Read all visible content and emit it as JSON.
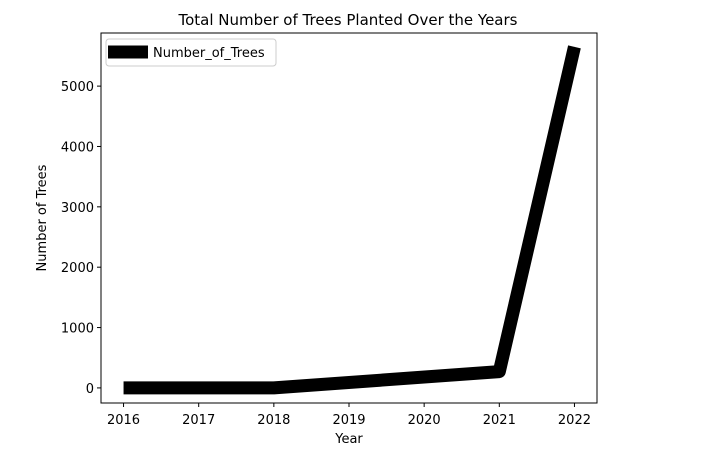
{
  "chart_data": {
    "type": "line",
    "title": "Total Number of Trees Planted Over the Years",
    "xlabel": "Year",
    "ylabel": "Number of Trees",
    "x": [
      2016,
      2018,
      2021,
      2022
    ],
    "series": [
      {
        "name": "Number_of_Trees",
        "values": [
          0,
          0,
          270,
          5650
        ],
        "color": "#000000"
      }
    ],
    "xlim": [
      2015.7,
      2022.3
    ],
    "ylim": [
      -250,
      5880
    ],
    "xticks": [
      2016,
      2017,
      2018,
      2019,
      2020,
      2021,
      2022
    ],
    "yticks": [
      0,
      1000,
      2000,
      3000,
      4000,
      5000
    ],
    "legend": {
      "position": "top-left",
      "label": "Number_of_Trees"
    },
    "grid": false
  }
}
